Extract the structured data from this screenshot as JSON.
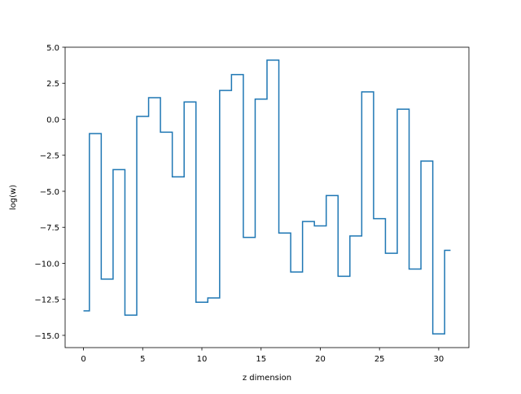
{
  "chart_data": {
    "type": "line",
    "drawstyle": "steps-mid",
    "xlabel": "z dimension",
    "ylabel": "log(w)",
    "xlim": [
      -1.55,
      32.55
    ],
    "ylim": [
      -15.85,
      5.0
    ],
    "xticks": [
      0,
      5,
      10,
      15,
      20,
      25,
      30
    ],
    "yticks": [
      5.0,
      2.5,
      0.0,
      -2.5,
      -5.0,
      -7.5,
      -10.0,
      -12.5,
      -15.0
    ],
    "ytick_labels": [
      "5.0",
      "2.5",
      "0.0",
      "−2.5",
      "−5.0",
      "−7.5",
      "−10.0",
      "−12.5",
      "−15.0"
    ],
    "grid": false,
    "legend": "none",
    "series": [
      {
        "color": "#1f77b4",
        "x": [
          0,
          1,
          2,
          3,
          4,
          5,
          6,
          7,
          8,
          9,
          10,
          11,
          12,
          13,
          14,
          15,
          16,
          17,
          18,
          19,
          20,
          21,
          22,
          23,
          24,
          25,
          26,
          27,
          28,
          29,
          30,
          31
        ],
        "y": [
          -13.3,
          -1.0,
          -11.1,
          -3.5,
          -13.6,
          0.2,
          1.5,
          -0.9,
          -4.0,
          1.2,
          -12.7,
          -12.4,
          2.0,
          3.1,
          -8.2,
          1.4,
          4.1,
          -7.9,
          -10.6,
          -7.1,
          -7.4,
          -5.3,
          -10.9,
          -8.1,
          1.9,
          -6.9,
          -9.3,
          0.7,
          -10.4,
          -2.9,
          -14.9,
          -9.1
        ]
      }
    ]
  }
}
